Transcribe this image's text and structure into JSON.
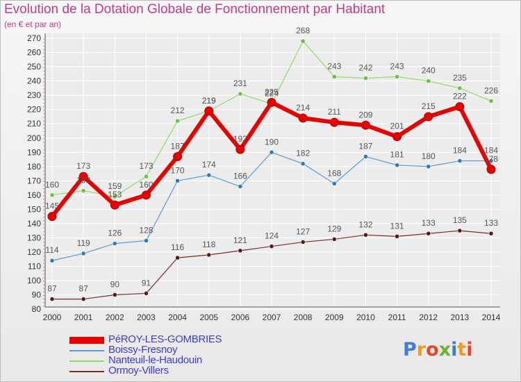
{
  "header": {
    "title": "Evolution de la Dotation Globale de Fonctionnement par Habitant",
    "subtitle": "(en € et par an)"
  },
  "logo": {
    "text": "Proxiti",
    "letters": [
      {
        "ch": "P",
        "color": "#3b7dd8"
      },
      {
        "ch": "r",
        "color": "#f39a1e"
      },
      {
        "ch": "o",
        "color": "#e8462c"
      },
      {
        "ch": "x",
        "color": "#69b32d"
      },
      {
        "ch": "i",
        "color": "#3b7dd8"
      },
      {
        "ch": "t",
        "color": "#f39a1e"
      },
      {
        "ch": "i",
        "color": "#e8462c"
      }
    ]
  },
  "chart_data": {
    "type": "line",
    "title": "Evolution de la Dotation Globale de Fonctionnement par Habitant",
    "subtitle": "(en € et par an)",
    "x": [
      2000,
      2001,
      2002,
      2003,
      2004,
      2005,
      2006,
      2007,
      2008,
      2009,
      2010,
      2011,
      2012,
      2013,
      2014
    ],
    "ylim": [
      80,
      270
    ],
    "yticks": [
      80,
      90,
      100,
      110,
      120,
      130,
      140,
      150,
      160,
      170,
      180,
      190,
      200,
      210,
      220,
      230,
      240,
      250,
      260,
      270
    ],
    "grid": true,
    "legend_position": "bottom-left",
    "series": [
      {
        "name": "PéROY-LES-GOMBRIES",
        "color": "#e80000",
        "marker_color": "#e80000",
        "width": 6,
        "values": [
          145,
          173,
          153,
          160,
          187,
          219,
          192,
          225,
          214,
          211,
          209,
          201,
          215,
          222,
          178
        ],
        "labels": [
          "145",
          "173",
          "153",
          "160",
          "187",
          "219",
          "192",
          "225",
          "214",
          "211",
          "209",
          "201",
          "215",
          "222",
          "178"
        ]
      },
      {
        "name": "Boissy-Fresnoy",
        "color": "#5a9bd1",
        "marker_color": "#2c7bc0",
        "width": 1.2,
        "values": [
          114,
          119,
          126,
          128,
          170,
          174,
          166,
          190,
          182,
          168,
          187,
          181,
          180,
          184,
          184
        ],
        "labels": [
          "114",
          "119",
          "126",
          "128",
          "170",
          "174",
          "166",
          "190",
          "182",
          "168",
          "187",
          "181",
          "180",
          "184",
          "184"
        ]
      },
      {
        "name": "Nanteuil-le-Haudouin",
        "color": "#92d86a",
        "marker_color": "#6cc33a",
        "width": 1.2,
        "values": [
          160,
          163,
          159,
          173,
          212,
          219,
          231,
          224,
          268,
          243,
          242,
          243,
          240,
          235,
          226
        ],
        "labels": [
          "160",
          "163",
          "159",
          "173",
          "212",
          "219",
          "231",
          "224",
          "268",
          "243",
          "242",
          "243",
          "240",
          "235",
          "226"
        ]
      },
      {
        "name": "Ormoy-Villers",
        "color": "#7a2a2a",
        "marker_color": "#5e1616",
        "width": 1.2,
        "values": [
          87,
          87,
          90,
          91,
          116,
          118,
          121,
          124,
          127,
          129,
          132,
          131,
          133,
          135,
          133
        ],
        "labels": [
          "87",
          "87",
          "90",
          "91",
          "116",
          "118",
          "121",
          "124",
          "127",
          "129",
          "132",
          "131",
          "133",
          "135",
          "133"
        ]
      }
    ]
  }
}
